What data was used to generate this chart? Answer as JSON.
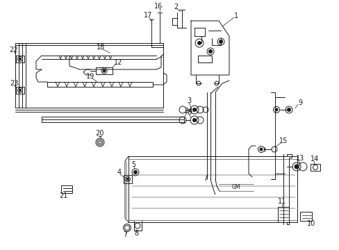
{
  "bg": "#ffffff",
  "lc": "#1a1a1a",
  "lw": 0.7,
  "fs": 7.0,
  "figsize": [
    4.89,
    3.6
  ],
  "dpi": 100,
  "xlim": [
    0,
    489
  ],
  "ylim": [
    0,
    360
  ]
}
